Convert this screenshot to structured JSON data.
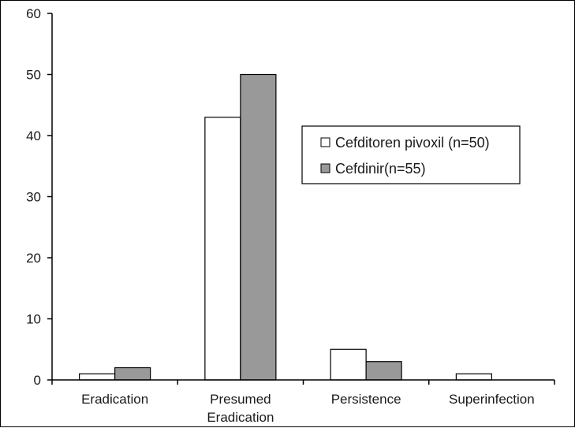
{
  "chart_data": {
    "type": "bar",
    "title": "",
    "xlabel": "",
    "ylabel": "",
    "ylim": [
      0,
      60
    ],
    "yticks": [
      0,
      10,
      20,
      30,
      40,
      50,
      60
    ],
    "grid": false,
    "legend_position": "right-center",
    "categories": [
      [
        "Eradication"
      ],
      [
        "Presumed",
        "Eradication"
      ],
      [
        "Persistence"
      ],
      [
        "Superinfection"
      ]
    ],
    "series": [
      {
        "name": "Cefditoren pivoxil (n=50)",
        "color": "#ffffff",
        "values": [
          1,
          43,
          5,
          1
        ]
      },
      {
        "name": "Cefdinir(n=55)",
        "color": "#999999",
        "values": [
          2,
          50,
          3,
          0
        ]
      }
    ]
  }
}
